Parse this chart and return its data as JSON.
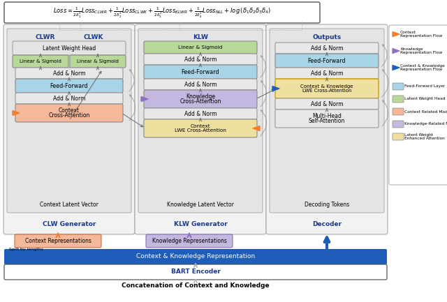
{
  "colors": {
    "feed_forward": "#a8d4e8",
    "latent_weight_head": "#b8d89a",
    "context_related": "#f4b89a",
    "knowledge_related": "#c4b8e0",
    "latent_weight_enhanced": "#f0e0a0",
    "add_norm_bg": "#e8e8e8",
    "panel_bg": "#e8e8e8",
    "outer_bg": "#f0f0f0",
    "blue_bar": "#1e5eb8",
    "arrow_orange": "#f08030",
    "arrow_purple": "#9070c0",
    "arrow_blue": "#1e5eb8",
    "dark_blue_text": "#1a3a8a",
    "legend_border": "#aaaaaa",
    "formula_border": "#444444",
    "gray_arrow": "#666666"
  },
  "texts": {
    "bottom": "Concatenation of Context and Knowledge",
    "bart": "BART Encoder",
    "ck_repr": "Context & Knowledge Representation",
    "context_repr": "Context Representations",
    "knowledge_repr": "Knowledge Representations",
    "split": "Split by lengths",
    "clw_gen": "CLW Generator",
    "klw_gen": "KLW Generator",
    "decoder": "Decoder",
    "clwr": "CLWR",
    "clwk": "CLWK",
    "klw": "KLW",
    "outputs": "Outputs",
    "latent_wh": "Latent Weight Head",
    "lin_sig": "Linear & Sigmoid",
    "add_norm": "Add & Norm",
    "feed_fwd": "Feed-Forward",
    "ctx_cross": "Context\nCross-Attention",
    "know_cross": "Knowledge\nCross-Attention",
    "ctx_lwe": "Context\nLWE Cross-Attention",
    "ck_lwe": "Context & Knowledge\nLWE Cross-Attention",
    "multi_head": "Multi-Head\nSelf-Attention",
    "ctx_latent": "Context Latent Vector",
    "know_latent": "Knowledge Latent Vector",
    "dec_tokens": "Decoding Tokens",
    "legend_ctx_flow": "Context\nRepresentation Flow",
    "legend_know_flow": "Knowledge\nRepresentation Flow",
    "legend_ck_flow": "Context & Knowledge\nRepresentation Flow",
    "legend_ff": "Feed-Forward Layer",
    "legend_lwh": "Latent Weight Head",
    "legend_crm": "Context Related Module",
    "legend_krm": "Knowledge-Related Module",
    "legend_lwe": "Latent Weight\nEnhanced Attention"
  }
}
